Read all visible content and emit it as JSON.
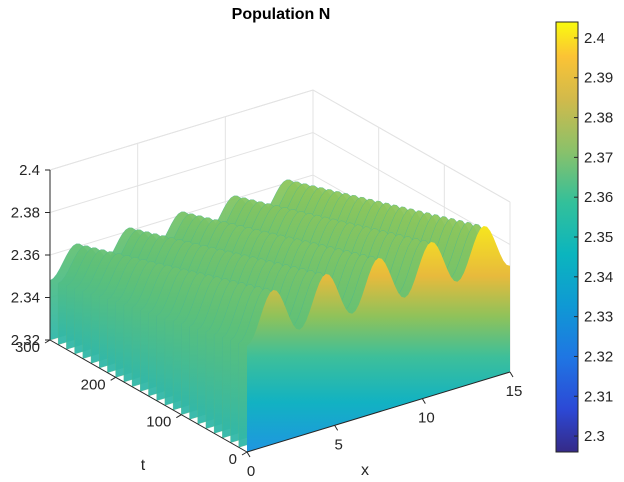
{
  "chart_data": {
    "type": "surface",
    "title": "Population N",
    "xlabel": "x",
    "ylabel": "t",
    "zlabel": "",
    "xlim": [
      0,
      15
    ],
    "tlim": [
      0,
      300
    ],
    "zlim": [
      2.32,
      2.4
    ],
    "x_ticks": [
      "0",
      "5",
      "10",
      "15"
    ],
    "t_ticks": [
      "0",
      "100",
      "200",
      "300"
    ],
    "z_ticks": [
      "2.32",
      "2.34",
      "2.36",
      "2.38",
      "2.4"
    ],
    "colorbar": {
      "range": [
        2.296,
        2.404
      ],
      "ticks": [
        "2.3",
        "2.31",
        "2.32",
        "2.33",
        "2.34",
        "2.35",
        "2.36",
        "2.37",
        "2.38",
        "2.39",
        "2.4"
      ],
      "colormap": "parula"
    },
    "grid": true,
    "description_values": {
      "peaks_count": 5,
      "peak_value_t0": 2.395,
      "trough_value_t0": 2.37,
      "baseline_value_t300": 2.348,
      "ridge_value_t300": 2.363
    }
  }
}
